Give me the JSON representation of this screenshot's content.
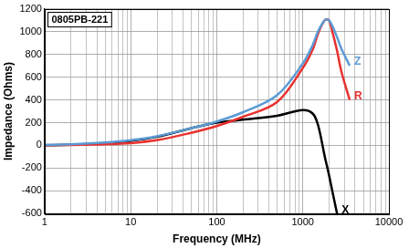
{
  "chart_data": {
    "type": "line",
    "title": "0805PB-221",
    "x_label": "Frequency (MHz)",
    "y_label": "Impedance (Ohms)",
    "log": "x",
    "grid": true,
    "x": [
      1,
      2,
      5,
      10,
      20,
      50,
      100,
      200,
      500,
      1000,
      1300,
      1500,
      1800,
      2000,
      2200,
      2500,
      2800,
      3500
    ],
    "series": [
      {
        "name": "Z",
        "color": "#5b9bd5",
        "values": [
          5,
          10,
          25,
          45,
          80,
          150,
          210,
          290,
          440,
          720,
          880,
          1000,
          1100,
          1100,
          1050,
          950,
          850,
          700
        ]
      },
      {
        "name": "R",
        "color": "#e8312f",
        "values": [
          2,
          4,
          10,
          20,
          45,
          110,
          170,
          250,
          380,
          680,
          840,
          980,
          1100,
          1100,
          1000,
          830,
          650,
          400
        ]
      },
      {
        "name": "X",
        "color": "#000000",
        "values": [
          2,
          5,
          20,
          40,
          75,
          150,
          200,
          225,
          260,
          310,
          280,
          180,
          -100,
          -250,
          -400,
          -600,
          null,
          null
        ]
      }
    ],
    "xlim": [
      1,
      10000
    ],
    "xticks": [
      1,
      10,
      100,
      1000,
      10000
    ],
    "ylim": [
      -600,
      1200
    ],
    "yticks": [
      -600,
      -400,
      -200,
      0,
      200,
      400,
      600,
      800,
      1000,
      1200
    ]
  }
}
